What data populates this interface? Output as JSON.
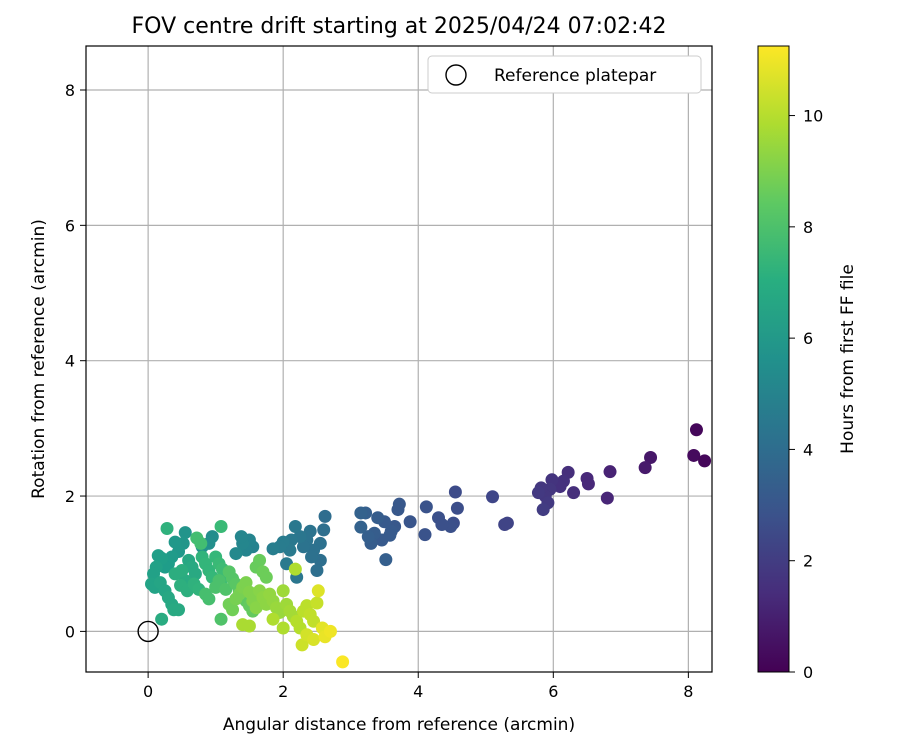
{
  "chart_data": {
    "type": "scatter",
    "title": "FOV centre drift starting at 2025/04/24 07:02:42",
    "xlabel": "Angular distance from reference (arcmin)",
    "ylabel": "Rotation from reference (arcmin)",
    "xlim": [
      -0.92,
      8.35
    ],
    "ylim": [
      -0.6,
      8.65
    ],
    "xticks": [
      0,
      2,
      4,
      6,
      8
    ],
    "yticks": [
      0,
      2,
      4,
      6,
      8
    ],
    "grid": true,
    "legend": {
      "placement": "top-right",
      "entries": [
        "Reference platepar"
      ]
    },
    "reference_point": {
      "label": "Reference platepar",
      "x": 0,
      "y": 0
    },
    "colorbar": {
      "label": "Hours from first FF file",
      "colormap": "viridis",
      "range": [
        0,
        11.25
      ],
      "ticks": [
        0,
        2,
        4,
        6,
        8,
        10
      ]
    },
    "point_fields": [
      "x",
      "y",
      "hours"
    ],
    "points": [
      [
        8.12,
        2.98,
        0.2
      ],
      [
        8.08,
        2.6,
        0.3
      ],
      [
        8.24,
        2.52,
        0.2
      ],
      [
        7.44,
        2.57,
        0.7
      ],
      [
        7.36,
        2.42,
        0.8
      ],
      [
        6.84,
        2.36,
        1.1
      ],
      [
        6.5,
        2.26,
        1.3
      ],
      [
        6.52,
        2.18,
        1.3
      ],
      [
        6.8,
        1.97,
        1.2
      ],
      [
        6.22,
        2.35,
        1.5
      ],
      [
        6.15,
        2.22,
        1.6
      ],
      [
        6.3,
        2.05,
        1.5
      ],
      [
        6.1,
        2.14,
        1.6
      ],
      [
        5.98,
        2.24,
        1.7
      ],
      [
        5.95,
        2.1,
        1.8
      ],
      [
        5.88,
        2.0,
        1.8
      ],
      [
        5.82,
        2.12,
        1.8
      ],
      [
        5.78,
        2.05,
        1.9
      ],
      [
        5.92,
        1.9,
        1.9
      ],
      [
        5.85,
        1.8,
        2.0
      ],
      [
        5.32,
        1.6,
        2.3
      ],
      [
        5.28,
        1.58,
        2.3
      ],
      [
        5.1,
        1.99,
        2.4
      ],
      [
        4.55,
        2.06,
        2.6
      ],
      [
        4.58,
        1.82,
        2.7
      ],
      [
        4.52,
        1.6,
        2.7
      ],
      [
        4.48,
        1.55,
        2.8
      ],
      [
        4.3,
        1.68,
        2.8
      ],
      [
        4.35,
        1.58,
        2.8
      ],
      [
        4.12,
        1.84,
        2.9
      ],
      [
        4.1,
        1.43,
        2.9
      ],
      [
        3.88,
        1.62,
        3.0
      ],
      [
        3.72,
        1.88,
        3.1
      ],
      [
        3.7,
        1.8,
        3.1
      ],
      [
        3.65,
        1.55,
        3.1
      ],
      [
        3.6,
        1.48,
        3.2
      ],
      [
        3.58,
        1.42,
        3.2
      ],
      [
        3.5,
        1.62,
        3.2
      ],
      [
        3.46,
        1.35,
        3.2
      ],
      [
        3.4,
        1.68,
        3.3
      ],
      [
        3.35,
        1.45,
        3.3
      ],
      [
        3.3,
        1.3,
        3.3
      ],
      [
        3.26,
        1.4,
        3.4
      ],
      [
        3.52,
        1.06,
        3.4
      ],
      [
        3.22,
        1.75,
        3.4
      ],
      [
        3.15,
        1.75,
        3.5
      ],
      [
        3.15,
        1.54,
        3.5
      ],
      [
        2.62,
        1.7,
        4.0
      ],
      [
        2.6,
        1.5,
        4.1
      ],
      [
        2.55,
        1.3,
        4.2
      ],
      [
        2.55,
        1.05,
        4.1
      ],
      [
        2.5,
        0.9,
        4.1
      ],
      [
        2.45,
        1.2,
        4.2
      ],
      [
        2.42,
        1.1,
        4.2
      ],
      [
        2.4,
        1.48,
        4.3
      ],
      [
        2.35,
        1.35,
        4.3
      ],
      [
        2.3,
        1.25,
        4.3
      ],
      [
        2.25,
        1.4,
        4.4
      ],
      [
        2.2,
        0.8,
        4.4
      ],
      [
        2.18,
        1.55,
        4.5
      ],
      [
        2.12,
        1.35,
        4.5
      ],
      [
        2.1,
        1.2,
        4.6
      ],
      [
        2.05,
        1.0,
        4.6
      ],
      [
        2.0,
        1.32,
        4.7
      ],
      [
        1.95,
        1.25,
        4.7
      ],
      [
        1.85,
        1.22,
        4.8
      ],
      [
        1.55,
        1.25,
        5.0
      ],
      [
        1.5,
        1.35,
        5.1
      ],
      [
        1.45,
        1.2,
        5.1
      ],
      [
        1.4,
        1.3,
        5.2
      ],
      [
        1.38,
        1.4,
        5.2
      ],
      [
        1.3,
        1.15,
        5.3
      ],
      [
        0.95,
        1.4,
        5.5
      ],
      [
        0.9,
        1.3,
        5.6
      ],
      [
        0.8,
        1.25,
        5.7
      ],
      [
        0.55,
        1.46,
        5.8
      ],
      [
        0.52,
        1.3,
        5.9
      ],
      [
        0.45,
        1.18,
        6.0
      ],
      [
        0.4,
        1.32,
        6.0
      ],
      [
        0.35,
        1.1,
        6.1
      ],
      [
        0.3,
        1.0,
        6.2
      ],
      [
        0.25,
        0.95,
        6.2
      ],
      [
        0.2,
        1.08,
        6.3
      ],
      [
        0.15,
        1.12,
        6.3
      ],
      [
        0.12,
        0.95,
        6.4
      ],
      [
        0.08,
        0.85,
        6.4
      ],
      [
        0.05,
        0.7,
        6.5
      ],
      [
        0.1,
        0.65,
        6.5
      ],
      [
        0.18,
        0.72,
        6.6
      ],
      [
        0.25,
        0.6,
        6.6
      ],
      [
        0.3,
        0.5,
        6.7
      ],
      [
        0.35,
        0.4,
        6.7
      ],
      [
        0.38,
        0.32,
        6.8
      ],
      [
        0.45,
        0.32,
        6.8
      ],
      [
        0.2,
        0.18,
        6.9
      ],
      [
        0.6,
        1.05,
        6.7
      ],
      [
        0.65,
        0.95,
        6.8
      ],
      [
        0.7,
        0.85,
        6.8
      ],
      [
        0.55,
        0.75,
        6.9
      ],
      [
        0.5,
        0.9,
        7.0
      ],
      [
        0.4,
        0.85,
        7.0
      ],
      [
        0.48,
        0.68,
        7.1
      ],
      [
        0.58,
        0.6,
        7.1
      ],
      [
        0.28,
        1.52,
        7.2
      ],
      [
        0.68,
        0.7,
        7.2
      ],
      [
        0.75,
        0.62,
        7.3
      ],
      [
        0.8,
        1.1,
        7.3
      ],
      [
        0.85,
        1.0,
        7.4
      ],
      [
        0.9,
        0.9,
        7.4
      ],
      [
        0.95,
        0.8,
        7.5
      ],
      [
        1.0,
        1.1,
        7.5
      ],
      [
        1.05,
        1.0,
        7.6
      ],
      [
        1.08,
        1.55,
        7.6
      ],
      [
        1.1,
        0.92,
        7.7
      ],
      [
        1.12,
        0.8,
        7.7
      ],
      [
        0.72,
        1.38,
        7.8
      ],
      [
        0.78,
        1.3,
        7.8
      ],
      [
        0.85,
        0.55,
        7.9
      ],
      [
        0.9,
        0.48,
        7.9
      ],
      [
        1.0,
        0.65,
        8.0
      ],
      [
        1.05,
        0.75,
        8.0
      ],
      [
        1.08,
        0.18,
        8.1
      ],
      [
        1.15,
        0.62,
        8.1
      ],
      [
        1.2,
        0.88,
        8.2
      ],
      [
        1.25,
        0.78,
        8.2
      ],
      [
        1.3,
        0.7,
        8.3
      ],
      [
        1.35,
        0.6,
        8.3
      ],
      [
        1.4,
        0.52,
        8.4
      ],
      [
        1.45,
        0.45,
        8.4
      ],
      [
        1.5,
        0.38,
        8.5
      ],
      [
        1.55,
        0.3,
        8.5
      ],
      [
        1.6,
        0.95,
        8.6
      ],
      [
        1.65,
        1.05,
        8.6
      ],
      [
        1.7,
        0.88,
        8.7
      ],
      [
        1.75,
        0.8,
        8.7
      ],
      [
        1.2,
        0.4,
        8.8
      ],
      [
        1.25,
        0.32,
        8.8
      ],
      [
        1.3,
        0.48,
        8.9
      ],
      [
        1.35,
        0.55,
        8.9
      ],
      [
        1.4,
        0.65,
        9.0
      ],
      [
        1.45,
        0.72,
        9.0
      ],
      [
        1.5,
        0.58,
        9.1
      ],
      [
        1.55,
        0.45,
        9.1
      ],
      [
        1.6,
        0.35,
        9.2
      ],
      [
        1.65,
        0.6,
        9.2
      ],
      [
        1.7,
        0.5,
        9.3
      ],
      [
        1.75,
        0.4,
        9.3
      ],
      [
        1.8,
        0.55,
        9.4
      ],
      [
        1.85,
        0.45,
        9.4
      ],
      [
        1.9,
        0.35,
        9.5
      ],
      [
        1.95,
        0.28,
        9.5
      ],
      [
        2.0,
        0.6,
        9.6
      ],
      [
        2.05,
        0.4,
        9.6
      ],
      [
        2.1,
        0.3,
        9.7
      ],
      [
        2.15,
        0.22,
        9.7
      ],
      [
        1.4,
        0.1,
        9.8
      ],
      [
        1.5,
        0.08,
        9.8
      ],
      [
        1.85,
        0.18,
        9.9
      ],
      [
        2.0,
        0.05,
        9.9
      ],
      [
        2.18,
        0.92,
        9.9
      ],
      [
        2.2,
        0.15,
        10.0
      ],
      [
        2.25,
        0.05,
        10.0
      ],
      [
        2.3,
        0.3,
        10.1
      ],
      [
        2.35,
        0.38,
        10.1
      ],
      [
        2.4,
        0.25,
        10.2
      ],
      [
        2.45,
        0.15,
        10.2
      ],
      [
        2.5,
        0.42,
        10.3
      ],
      [
        2.28,
        -0.2,
        10.4
      ],
      [
        2.35,
        -0.05,
        10.5
      ],
      [
        2.45,
        -0.12,
        10.6
      ],
      [
        2.52,
        0.6,
        10.7
      ],
      [
        2.58,
        0.05,
        10.8
      ],
      [
        2.62,
        -0.08,
        10.9
      ],
      [
        2.7,
        0.0,
        11.0
      ],
      [
        2.88,
        -0.45,
        11.2
      ]
    ]
  }
}
